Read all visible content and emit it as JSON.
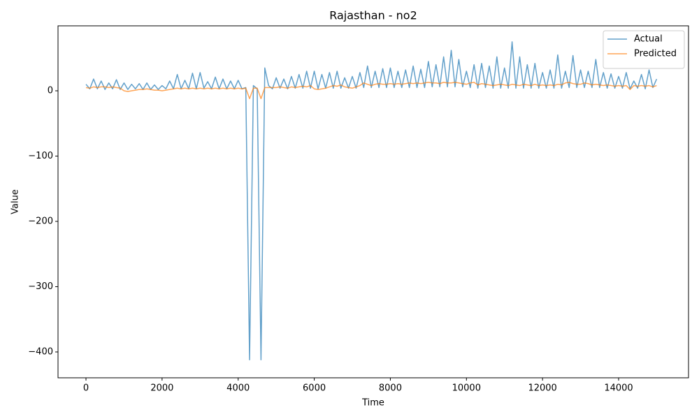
{
  "chart_data": {
    "type": "line",
    "title": "Rajasthan - no2",
    "xlabel": "Time",
    "ylabel": "Value",
    "x": [
      0,
      100,
      200,
      300,
      400,
      500,
      600,
      700,
      800,
      900,
      1000,
      1100,
      1200,
      1300,
      1400,
      1500,
      1600,
      1700,
      1800,
      1900,
      2000,
      2100,
      2200,
      2300,
      2400,
      2500,
      2600,
      2700,
      2800,
      2900,
      3000,
      3100,
      3200,
      3300,
      3400,
      3500,
      3600,
      3700,
      3800,
      3900,
      4000,
      4100,
      4200,
      4300,
      4400,
      4500,
      4600,
      4700,
      4800,
      4900,
      5000,
      5100,
      5200,
      5300,
      5400,
      5500,
      5600,
      5700,
      5800,
      5900,
      6000,
      6100,
      6200,
      6300,
      6400,
      6500,
      6600,
      6700,
      6800,
      6900,
      7000,
      7100,
      7200,
      7300,
      7400,
      7500,
      7600,
      7700,
      7800,
      7900,
      8000,
      8100,
      8200,
      8300,
      8400,
      8500,
      8600,
      8700,
      8800,
      8900,
      9000,
      9100,
      9200,
      9300,
      9400,
      9500,
      9600,
      9700,
      9800,
      9900,
      10000,
      10100,
      10200,
      10300,
      10400,
      10500,
      10600,
      10700,
      10800,
      10900,
      11000,
      11100,
      11200,
      11300,
      11400,
      11500,
      11600,
      11700,
      11800,
      11900,
      12000,
      12100,
      12200,
      12300,
      12400,
      12500,
      12600,
      12700,
      12800,
      12900,
      13000,
      13100,
      13200,
      13300,
      13400,
      13500,
      13600,
      13700,
      13800,
      13900,
      14000,
      14100,
      14200,
      14300,
      14400,
      14500,
      14600,
      14700,
      14800,
      14900,
      15000
    ],
    "series": [
      {
        "name": "Actual",
        "color": "#1f77b4",
        "values": [
          10,
          3,
          18,
          3,
          15,
          2,
          12,
          3,
          17,
          2,
          12,
          2,
          10,
          3,
          11,
          2,
          12,
          2,
          9,
          2,
          8,
          3,
          15,
          3,
          25,
          3,
          16,
          3,
          27,
          3,
          28,
          4,
          14,
          3,
          21,
          3,
          18,
          3,
          15,
          3,
          16,
          3,
          5,
          -412,
          8,
          3,
          -412,
          35,
          8,
          3,
          20,
          4,
          18,
          3,
          22,
          4,
          25,
          4,
          30,
          4,
          30,
          3,
          25,
          4,
          28,
          4,
          30,
          4,
          20,
          4,
          22,
          4,
          28,
          5,
          38,
          5,
          30,
          5,
          34,
          5,
          35,
          5,
          30,
          5,
          32,
          5,
          38,
          5,
          33,
          5,
          45,
          6,
          40,
          6,
          52,
          6,
          62,
          6,
          48,
          6,
          30,
          5,
          40,
          4,
          42,
          5,
          38,
          4,
          52,
          4,
          35,
          4,
          75,
          4,
          52,
          4,
          40,
          4,
          42,
          4,
          28,
          4,
          32,
          4,
          55,
          4,
          30,
          5,
          54,
          5,
          32,
          5,
          30,
          5,
          48,
          5,
          28,
          4,
          26,
          4,
          22,
          4,
          28,
          3,
          15,
          4,
          25,
          3,
          32,
          5,
          18
        ]
      },
      {
        "name": "Predicted",
        "color": "#ff7f0e",
        "values": [
          5,
          4,
          6,
          5,
          6,
          6,
          5,
          6,
          5,
          4,
          0,
          -1,
          0,
          1,
          2,
          2,
          3,
          2,
          1,
          1,
          0,
          1,
          2,
          3,
          4,
          3,
          4,
          3,
          4,
          3,
          4,
          3,
          4,
          3,
          4,
          3,
          4,
          3,
          4,
          3,
          4,
          3,
          4,
          -12,
          4,
          4,
          -12,
          5,
          5,
          5,
          5,
          6,
          5,
          4,
          6,
          5,
          6,
          7,
          6,
          8,
          3,
          2,
          3,
          4,
          6,
          8,
          7,
          9,
          6,
          5,
          4,
          6,
          8,
          12,
          10,
          8,
          10,
          11,
          10,
          10,
          11,
          10,
          11,
          10,
          11,
          12,
          11,
          12,
          11,
          12,
          13,
          12,
          12,
          11,
          13,
          12,
          12,
          13,
          12,
          11,
          10,
          12,
          13,
          9,
          11,
          10,
          9,
          8,
          9,
          10,
          9,
          8,
          10,
          9,
          8,
          10,
          9,
          8,
          10,
          8,
          9,
          8,
          9,
          8,
          10,
          9,
          12,
          13,
          11,
          10,
          10,
          12,
          11,
          9,
          10,
          9,
          8,
          9,
          8,
          7,
          8,
          7,
          8,
          2,
          8,
          7,
          8,
          7,
          8,
          6,
          8
        ]
      }
    ],
    "xlim": [
      -735,
      15837
    ],
    "ylim": [
      -439.6,
      99.5
    ],
    "xticks": [
      0,
      2000,
      4000,
      6000,
      8000,
      10000,
      12000,
      14000
    ],
    "yticks": [
      {
        "value": -400,
        "label": "−400"
      },
      {
        "value": -300,
        "label": "−300"
      },
      {
        "value": -200,
        "label": "−200"
      },
      {
        "value": -100,
        "label": "−100"
      },
      0
    ],
    "legend": "upper right"
  }
}
